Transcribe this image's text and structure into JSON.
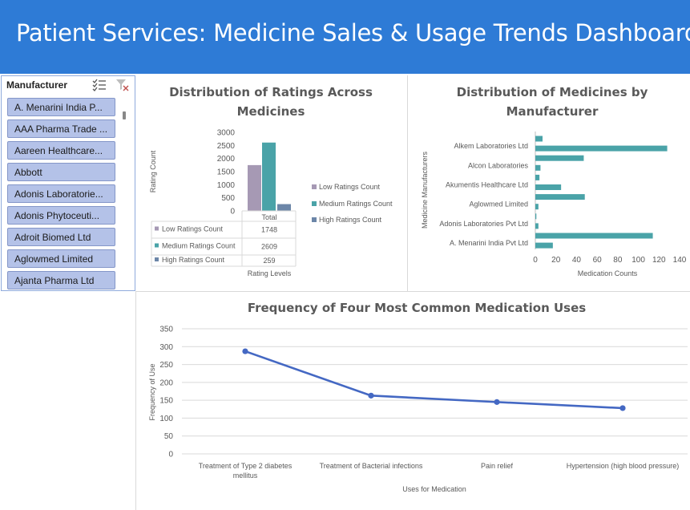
{
  "banner": {
    "title": "Patient Services: Medicine Sales & Usage Trends Dashboard"
  },
  "slicer": {
    "header": "Manufacturer",
    "multi_select_icon": "multi-select-icon",
    "clear_filter_icon": "clear-filter-icon",
    "items": [
      "A. Menarini India P...",
      "AAA Pharma Trade ...",
      "Aareen Healthcare...",
      "Abbott",
      "Adonis Laboratorie...",
      "Adonis Phytoceuti...",
      "Adroit Biomed Ltd",
      "Aglowmed Limited",
      "Ajanta Pharma Ltd"
    ]
  },
  "ratings_chart": {
    "title_line1": "Distribution of Ratings Across",
    "title_line2": "Medicines",
    "ylabel": "Rating Count",
    "xlabel": "Rating Levels",
    "table_header": "Total",
    "colors": [
      "#a699b4",
      "#4aa3a8",
      "#6c86a8"
    ]
  },
  "manufacturer_chart": {
    "title_line1": "Distribution of Medicines by",
    "title_line2": "Manufacturer",
    "ylabel": "Medicine Manufacturers",
    "xlabel": "Medication Counts",
    "color": "#4aa3a8"
  },
  "uses_chart": {
    "title": "Frequency of Four Most Common Medication Uses",
    "ylabel": "Frequency of Use",
    "xlabel": "Uses for Medication",
    "color": "#4468c3"
  },
  "chart_data": [
    {
      "type": "bar",
      "title": "Distribution of Ratings Across Medicines",
      "xlabel": "Rating Levels",
      "ylabel": "Rating Count",
      "categories": [
        "Total"
      ],
      "ylim": [
        0,
        3000
      ],
      "yticks": [
        0,
        500,
        1000,
        1500,
        2000,
        2500,
        3000
      ],
      "legend": "right",
      "series": [
        {
          "name": "Low Ratings Count",
          "values": [
            1748
          ]
        },
        {
          "name": "Medium Ratings Count",
          "values": [
            2609
          ]
        },
        {
          "name": "High Ratings Count",
          "values": [
            259
          ]
        }
      ]
    },
    {
      "type": "bar",
      "orientation": "horizontal",
      "title": "Distribution of Medicines by Manufacturer",
      "xlabel": "Medication Counts",
      "ylabel": "Medicine Manufacturers",
      "xlim": [
        0,
        140
      ],
      "xticks": [
        0,
        20,
        40,
        60,
        80,
        100,
        120,
        140
      ],
      "shown_labels": [
        "Alkem Laboratories Ltd",
        "Alcon Laboratories",
        "Akumentis Healthcare Ltd",
        "Aglowmed Limited",
        "Adonis Laboratories Pvt Ltd",
        "A. Menarini India Pvt Ltd"
      ],
      "values": [
        7,
        128,
        47,
        5,
        4,
        25,
        48,
        3,
        1,
        3,
        114,
        17
      ]
    },
    {
      "type": "line",
      "title": "Frequency of Four Most Common Medication Uses",
      "xlabel": "Uses for Medication",
      "ylabel": "Frequency of Use",
      "categories": [
        "Treatment of Type 2 diabetes mellitus",
        "Treatment of Bacterial infections",
        "Pain relief",
        "Hypertension (high blood pressure)"
      ],
      "category_lines": [
        [
          "Treatment of Type 2 diabetes",
          "mellitus"
        ],
        [
          "Treatment of Bacterial infections"
        ],
        [
          "Pain relief"
        ],
        [
          "Hypertension (high blood pressure)"
        ]
      ],
      "values": [
        287,
        163,
        145,
        128
      ],
      "ylim": [
        0,
        350
      ],
      "yticks": [
        0,
        50,
        100,
        150,
        200,
        250,
        300,
        350
      ]
    }
  ]
}
